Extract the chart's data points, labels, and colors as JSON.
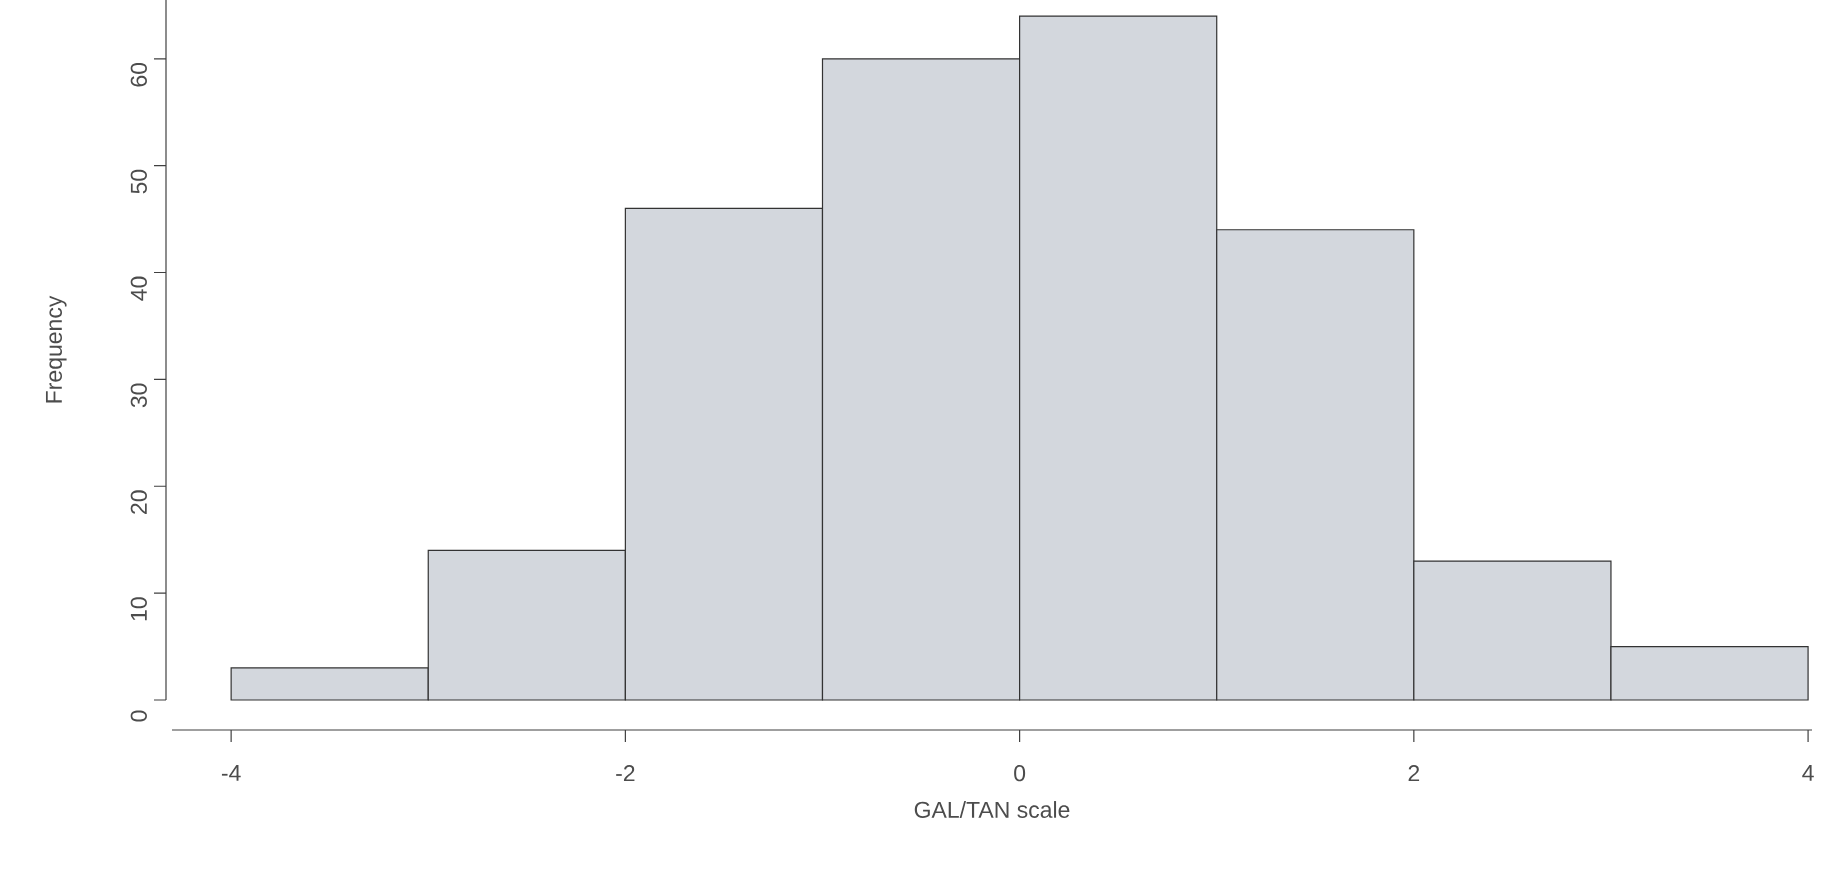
{
  "chart_data": {
    "type": "histogram",
    "xlabel": "GAL/TAN scale",
    "ylabel": "Frequency",
    "bins": [
      -4,
      -3,
      -2,
      -1,
      0,
      1,
      2,
      3,
      4
    ],
    "values": [
      3,
      14,
      46,
      60,
      64,
      44,
      13,
      5
    ],
    "color": "#d3d7dd",
    "xlim": [
      -4.3,
      4.02
    ],
    "ylim": [
      0,
      65.5
    ],
    "xticks": [
      -4,
      -2,
      0,
      2,
      4
    ],
    "yticks": [
      0,
      10,
      20,
      30,
      40,
      50,
      60
    ]
  }
}
